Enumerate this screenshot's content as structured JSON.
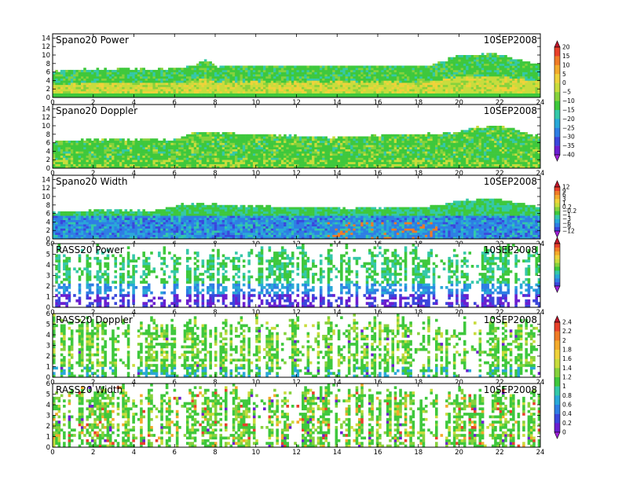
{
  "chart_data": [
    {
      "type": "heatmap",
      "title": "Spano20  Power",
      "date": "10SEP2008",
      "colorbar": "cb_power",
      "xlim": [
        0,
        24
      ],
      "xticks": [
        "0",
        "2",
        "4",
        "6",
        "8",
        "10",
        "12",
        "14",
        "16",
        "18",
        "20",
        "22",
        "24"
      ],
      "ylim": [
        0,
        15
      ],
      "yticks": [
        "0",
        "2",
        "4",
        "6",
        "8",
        "10",
        "12",
        "14"
      ],
      "top_height_profile": [
        [
          0,
          6.5
        ],
        [
          2.3,
          7.0
        ],
        [
          5.5,
          6.9
        ],
        [
          6.8,
          7.6
        ],
        [
          7.5,
          9.2
        ],
        [
          8.1,
          7.6
        ],
        [
          14,
          7.8
        ],
        [
          18.5,
          7.6
        ],
        [
          20,
          10.2
        ],
        [
          21.8,
          10.5
        ],
        [
          23.8,
          8.0
        ]
      ],
      "dominant_value_profile": [
        [
          0,
          -5
        ],
        [
          4,
          0
        ],
        [
          8,
          -5
        ],
        [
          12,
          -5
        ],
        [
          16,
          -5
        ],
        [
          20,
          -5
        ],
        [
          24,
          -10
        ]
      ]
    },
    {
      "type": "heatmap",
      "title": "Spano20  Doppler",
      "date": "10SEP2008",
      "colorbar": "cb_power",
      "xlim": [
        0,
        24
      ],
      "xticks": [
        "0",
        "2",
        "4",
        "6",
        "8",
        "10",
        "12",
        "14",
        "16",
        "18",
        "20",
        "22",
        "24"
      ],
      "ylim": [
        0,
        15
      ],
      "yticks": [
        "0",
        "2",
        "4",
        "6",
        "8",
        "10",
        "12",
        "14"
      ],
      "top_height_profile": [
        [
          0,
          6.5
        ],
        [
          2.2,
          7.0
        ],
        [
          6.0,
          7.0
        ],
        [
          6.9,
          8.8
        ],
        [
          9.5,
          8.2
        ],
        [
          14,
          7.5
        ],
        [
          19.8,
          8.6
        ],
        [
          20.6,
          9.8
        ],
        [
          22,
          10.2
        ],
        [
          23.8,
          8.0
        ]
      ],
      "dominant_value_profile": [
        [
          0,
          -15
        ],
        [
          24,
          -15
        ]
      ]
    },
    {
      "type": "heatmap",
      "title": "Spano20  Width",
      "date": "10SEP2008",
      "colorbar": "cb_width_spano",
      "xlim": [
        0,
        24
      ],
      "xticks": [
        "0",
        "2",
        "4",
        "6",
        "8",
        "10",
        "12",
        "14",
        "16",
        "18",
        "20",
        "22",
        "24"
      ],
      "ylim": [
        0,
        15
      ],
      "yticks": [
        "0",
        "2",
        "4",
        "6",
        "8",
        "10",
        "12",
        "14"
      ],
      "top_height_profile": [
        [
          0,
          6.5
        ],
        [
          2.3,
          7.0
        ],
        [
          5.2,
          7.0
        ],
        [
          6.5,
          8.5
        ],
        [
          9.8,
          8.0
        ],
        [
          14,
          7.5
        ],
        [
          18.5,
          7.7
        ],
        [
          20.3,
          9.5
        ],
        [
          21.9,
          9.7
        ],
        [
          23.8,
          7.9
        ]
      ],
      "dominant_value_profile": [
        [
          0,
          -1
        ],
        [
          24,
          -1
        ]
      ]
    },
    {
      "type": "heatmap",
      "title": "RASS20  Power",
      "date": "10SEP2008",
      "colorbar": "cb_power_rass",
      "xlim": [
        0,
        24
      ],
      "xticks": [
        "0",
        "2",
        "4",
        "6",
        "8",
        "10",
        "12",
        "14",
        "16",
        "18",
        "20",
        "22",
        "24"
      ],
      "ylim": [
        0,
        6
      ],
      "yticks": [
        "0",
        "1",
        "2",
        "3",
        "4",
        "5",
        "6"
      ],
      "top_height_profile": [
        [
          0,
          6
        ],
        [
          24,
          6
        ]
      ],
      "dominant_value_profile": [
        [
          0,
          -3
        ],
        [
          24,
          -3
        ]
      ]
    },
    {
      "type": "heatmap",
      "title": "RASS20  Doppler",
      "date": "10SEP2008",
      "colorbar": "cb_rass",
      "xlim": [
        0,
        24
      ],
      "xticks": [
        "0",
        "2",
        "4",
        "6",
        "8",
        "10",
        "12",
        "14",
        "16",
        "18",
        "20",
        "22",
        "24"
      ],
      "ylim": [
        0,
        6
      ],
      "yticks": [
        "0",
        "1",
        "2",
        "3",
        "4",
        "5",
        "6"
      ],
      "top_height_profile": [
        [
          0,
          6
        ],
        [
          24,
          6
        ]
      ],
      "dominant_value_profile": [
        [
          0,
          1.2
        ],
        [
          24,
          1.2
        ]
      ]
    },
    {
      "type": "heatmap",
      "title": "RASS20  Width",
      "date": "10SEP2008",
      "colorbar": "cb_rass",
      "xlim": [
        0,
        24
      ],
      "xticks": [
        "0",
        "2",
        "4",
        "6",
        "8",
        "10",
        "12",
        "14",
        "16",
        "18",
        "20",
        "22",
        "24"
      ],
      "ylim": [
        0,
        6
      ],
      "yticks": [
        "0",
        "1",
        "2",
        "3",
        "4",
        "5",
        "6"
      ],
      "top_height_profile": [
        [
          0,
          6
        ],
        [
          24,
          6
        ]
      ],
      "dominant_value_profile": [
        [
          0,
          1.2
        ],
        [
          24,
          1.2
        ]
      ]
    }
  ],
  "colorbars": {
    "cb_power": {
      "labels": [
        "20",
        "15",
        "10",
        "5",
        "0",
        "−5",
        "−10",
        "−15",
        "−20",
        "−25",
        "−30",
        "−35",
        "−40"
      ],
      "colors": [
        "#c0162a",
        "#e8402a",
        "#f07b26",
        "#f4aa2b",
        "#efd23a",
        "#c8dc3c",
        "#86d23c",
        "#3ec83c",
        "#34c8a8",
        "#29a8d8",
        "#2e7ee4",
        "#3a46dc",
        "#6a1ed0",
        "#a020d8"
      ]
    },
    "cb_width_spano": {
      "labels": [
        "12",
        "9",
        "6",
        "3",
        "1",
        "0.2",
        "−0.2",
        "−1",
        "−3",
        "−6",
        "−9",
        "−12"
      ],
      "colors": [
        "#c0162a",
        "#e8402a",
        "#f07b26",
        "#f4aa2b",
        "#efd23a",
        "#c8dc3c",
        "#86d23c",
        "#3ec83c",
        "#34c8a8",
        "#29a8d8",
        "#2e7ee4",
        "#3a46dc",
        "#a020d8"
      ]
    },
    "cb_power_rass": {
      "labels": [],
      "colors": [
        "#c0162a",
        "#e8402a",
        "#f07b26",
        "#f4aa2b",
        "#efd23a",
        "#c8dc3c",
        "#86d23c",
        "#3ec83c",
        "#34c8a8",
        "#29a8d8",
        "#2e7ee4",
        "#3a46dc",
        "#a020d8"
      ]
    },
    "cb_rass": {
      "labels": [
        "2.4",
        "2.2",
        "2",
        "1.8",
        "1.6",
        "1.4",
        "1.2",
        "1",
        "0.8",
        "0.6",
        "0.4",
        "0.2",
        "0"
      ],
      "colors": [
        "#c0162a",
        "#e8402a",
        "#f07b26",
        "#f4aa2b",
        "#efd23a",
        "#c8dc3c",
        "#86d23c",
        "#3ec83c",
        "#34c8a8",
        "#29a8d8",
        "#2e7ee4",
        "#3a46dc",
        "#6a1ed0",
        "#a020d8"
      ]
    }
  }
}
